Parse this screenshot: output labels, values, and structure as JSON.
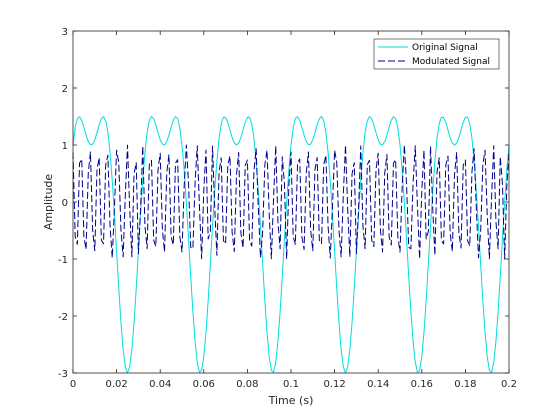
{
  "chart_data": {
    "type": "line",
    "title": "",
    "xlabel": "Time (s)",
    "ylabel": "Amplitude",
    "xlim": [
      0,
      0.2
    ],
    "ylim": [
      -3,
      3
    ],
    "x_ticks": [
      0,
      0.02,
      0.04,
      0.06,
      0.08,
      0.1,
      0.12,
      0.14,
      0.16,
      0.18,
      0.2
    ],
    "x_tick_labels": [
      "0",
      "0.02",
      "0.04",
      "0.06",
      "0.08",
      "0.1",
      "0.12",
      "0.14",
      "0.16",
      "0.18",
      "0.2"
    ],
    "y_ticks": [
      -3,
      -2,
      -1,
      0,
      1,
      2,
      3
    ],
    "y_tick_labels": [
      "-3",
      "-2",
      "-1",
      "0",
      "1",
      "2",
      "3"
    ],
    "grid": false,
    "legend_position": "top-right",
    "sampling_interval": 0.001,
    "series": [
      {
        "name": "Original Signal",
        "color": "#00dddd",
        "dash": "solid",
        "model": "2*sin(2*pi*30*t) + sin(2*pi*60*t + pi/2)"
      },
      {
        "name": "Modulated Signal",
        "color": "#00008b",
        "dash": "dashed",
        "model": "cos(2*pi*250*t + 0.5*m(t))"
      }
    ]
  }
}
